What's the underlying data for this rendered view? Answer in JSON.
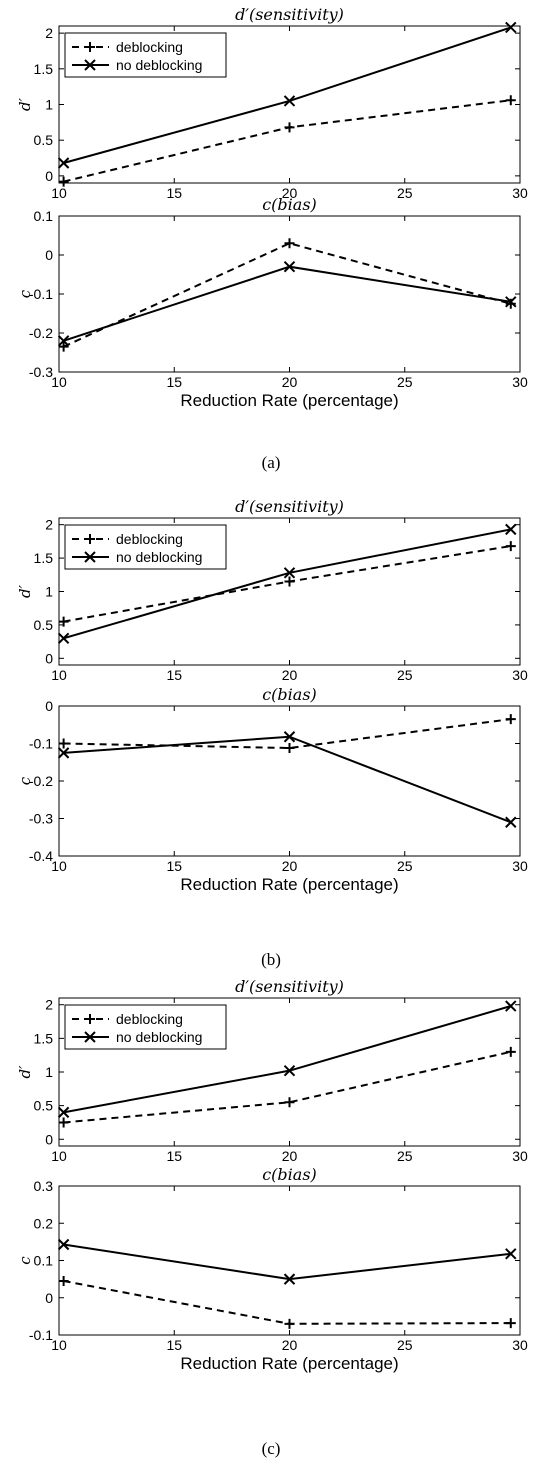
{
  "chart_data": [
    {
      "type": "line",
      "panel": "a",
      "title": "d′(sensitivity)",
      "xlabel": "",
      "ylabel": "d′",
      "xlim": [
        10,
        30
      ],
      "ylim": [
        -0.1,
        2.1
      ],
      "xticks": [
        "10",
        "15",
        "20",
        "25",
        "30"
      ],
      "yticks": [
        "0",
        "0.5",
        "1",
        "1.5",
        "2"
      ],
      "ytick_values": [
        0,
        0.5,
        1,
        1.5,
        2
      ],
      "x": [
        10.2,
        20,
        29.6
      ],
      "legend": "top-left",
      "series": [
        {
          "name": "deblocking",
          "values": [
            -0.08,
            0.68,
            1.06
          ],
          "style": "dashed",
          "marker": "+"
        },
        {
          "name": "no deblocking",
          "values": [
            0.18,
            1.05,
            2.08
          ],
          "style": "solid",
          "marker": "x"
        }
      ]
    },
    {
      "type": "line",
      "panel": "a",
      "title": "c(bias)",
      "xlabel": "Reduction Rate (percentage)",
      "ylabel": "c",
      "xlim": [
        10,
        30
      ],
      "ylim": [
        -0.3,
        0.1
      ],
      "xticks": [
        "10",
        "15",
        "20",
        "25",
        "30"
      ],
      "yticks": [
        "-0.3",
        "-0.2",
        "-0.1",
        "0",
        "0.1"
      ],
      "ytick_values": [
        -0.3,
        -0.2,
        -0.1,
        0,
        0.1
      ],
      "x": [
        10.2,
        20,
        29.6
      ],
      "series": [
        {
          "name": "deblocking",
          "values": [
            -0.235,
            0.03,
            -0.125
          ],
          "style": "dashed",
          "marker": "+"
        },
        {
          "name": "no deblocking",
          "values": [
            -0.22,
            -0.03,
            -0.12
          ],
          "style": "solid",
          "marker": "x"
        }
      ]
    },
    {
      "type": "line",
      "panel": "b",
      "title": "d′(sensitivity)",
      "xlabel": "",
      "ylabel": "d′",
      "xlim": [
        10,
        30
      ],
      "ylim": [
        -0.1,
        2.1
      ],
      "xticks": [
        "10",
        "15",
        "20",
        "25",
        "30"
      ],
      "yticks": [
        "0",
        "0.5",
        "1",
        "1.5",
        "2"
      ],
      "ytick_values": [
        0,
        0.5,
        1,
        1.5,
        2
      ],
      "x": [
        10.2,
        20,
        29.6
      ],
      "legend": "top-left",
      "series": [
        {
          "name": "deblocking",
          "values": [
            0.55,
            1.15,
            1.68
          ],
          "style": "dashed",
          "marker": "+"
        },
        {
          "name": "no deblocking",
          "values": [
            0.3,
            1.28,
            1.93
          ],
          "style": "solid",
          "marker": "x"
        }
      ]
    },
    {
      "type": "line",
      "panel": "b",
      "title": "c(bias)",
      "xlabel": "Reduction Rate (percentage)",
      "ylabel": "c",
      "xlim": [
        10,
        30
      ],
      "ylim": [
        -0.4,
        0
      ],
      "xticks": [
        "10",
        "15",
        "20",
        "25",
        "30"
      ],
      "yticks": [
        "-0.4",
        "-0.3",
        "-0.2",
        "-0.1",
        "0"
      ],
      "ytick_values": [
        -0.4,
        -0.3,
        -0.2,
        -0.1,
        0
      ],
      "x": [
        10.2,
        20,
        29.6
      ],
      "series": [
        {
          "name": "deblocking",
          "values": [
            -0.1,
            -0.112,
            -0.035
          ],
          "style": "dashed",
          "marker": "+"
        },
        {
          "name": "no deblocking",
          "values": [
            -0.125,
            -0.082,
            -0.31
          ],
          "style": "solid",
          "marker": "x"
        }
      ]
    },
    {
      "type": "line",
      "panel": "c",
      "title": "d′(sensitivity)",
      "xlabel": "",
      "ylabel": "d′",
      "xlim": [
        10,
        30
      ],
      "ylim": [
        -0.1,
        2.1
      ],
      "xticks": [
        "10",
        "15",
        "20",
        "25",
        "30"
      ],
      "yticks": [
        "0",
        "0.5",
        "1",
        "1.5",
        "2"
      ],
      "ytick_values": [
        0,
        0.5,
        1,
        1.5,
        2
      ],
      "x": [
        10.2,
        20,
        29.6
      ],
      "legend": "top-left",
      "series": [
        {
          "name": "deblocking",
          "values": [
            0.25,
            0.55,
            1.3
          ],
          "style": "dashed",
          "marker": "+"
        },
        {
          "name": "no deblocking",
          "values": [
            0.4,
            1.02,
            1.98
          ],
          "style": "solid",
          "marker": "x"
        }
      ]
    },
    {
      "type": "line",
      "panel": "c",
      "title": "c(bias)",
      "xlabel": "Reduction Rate (percentage)",
      "ylabel": "c",
      "xlim": [
        10,
        30
      ],
      "ylim": [
        -0.1,
        0.3
      ],
      "xticks": [
        "10",
        "15",
        "20",
        "25",
        "30"
      ],
      "yticks": [
        "-0.1",
        "0",
        "0.1",
        "0.2",
        "0.3"
      ],
      "ytick_values": [
        -0.1,
        0,
        0.1,
        0.2,
        0.3
      ],
      "x": [
        10.2,
        20,
        29.6
      ],
      "series": [
        {
          "name": "deblocking",
          "values": [
            0.045,
            -0.07,
            -0.068
          ],
          "style": "dashed",
          "marker": "+"
        },
        {
          "name": "no deblocking",
          "values": [
            0.143,
            0.05,
            0.118
          ],
          "style": "solid",
          "marker": "x"
        }
      ]
    }
  ],
  "captions": [
    "(a)",
    "(b)",
    "(c)"
  ]
}
